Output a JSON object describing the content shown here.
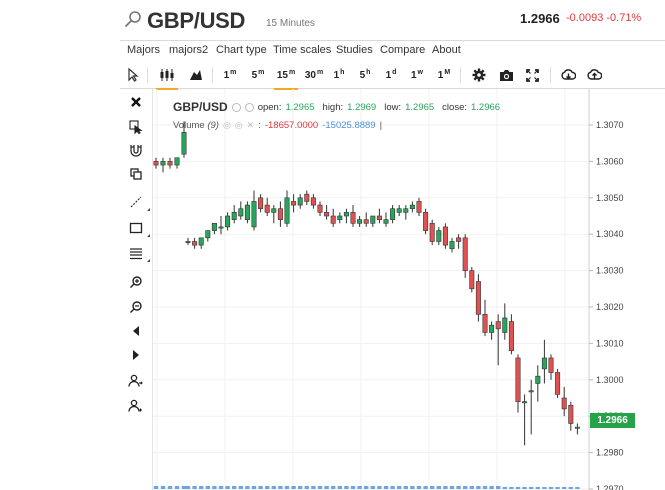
{
  "header": {
    "symbol": "GBP/USD",
    "timeframe": "15 Minutes",
    "last_price": "1.2966",
    "change": "-0.0093 -0.71%"
  },
  "menu": [
    "Majors",
    "majors2",
    "Chart type",
    "Time scales",
    "Studies",
    "Compare",
    "About"
  ],
  "toolbar": {
    "timeframes": [
      {
        "main": "1",
        "sup": "m"
      },
      {
        "main": "5",
        "sup": "m"
      },
      {
        "main": "15",
        "sup": "m"
      },
      {
        "main": "30",
        "sup": "m"
      },
      {
        "main": "1",
        "sup": "h"
      },
      {
        "main": "5",
        "sup": "h"
      },
      {
        "main": "1",
        "sup": "d"
      },
      {
        "main": "1",
        "sup": "w"
      },
      {
        "main": "1",
        "sup": "M"
      }
    ],
    "selected_timeframe": "15m"
  },
  "left_tools": [
    "close-icon",
    "crosshair-icon",
    "magnet-icon",
    "clone-icon",
    "trendline-icon",
    "rectangle-icon",
    "fibonacci-icon",
    "zoom-in-icon",
    "zoom-out-icon",
    "scroll-left-icon",
    "scroll-right-icon",
    "user-add-icon",
    "user-anchor-icon"
  ],
  "legend": {
    "symbol": "GBP/USD",
    "open_label": "open:",
    "open": "1.2965",
    "high_label": "high:",
    "high": "1.2969",
    "low_label": "low:",
    "low": "1.2965",
    "close_label": "close:",
    "close": "1.2966",
    "volume_name": "Volume",
    "volume_param": "(9)",
    "volume_value1": "-18657.0000",
    "volume_value2": "-15025.8889",
    "volume_suffix": "|"
  },
  "price_tag": "1.2966",
  "colors": {
    "up": "#26a65b",
    "down": "#e05252",
    "accent": "#f5a623",
    "price_tag": "#25a34a",
    "negative_change": "#e0393e",
    "volume_bar": "#4a90d9"
  },
  "chart_data": {
    "type": "candlestick",
    "y_ticks": [
      "1.3070",
      "1.3060",
      "1.3050",
      "1.3040",
      "1.3030",
      "1.3020",
      "1.3010",
      "1.3000",
      "1.2990",
      "1.2980",
      "1.2970"
    ],
    "ylim": [
      1.297,
      1.3075
    ],
    "current_price": 1.2966,
    "candles": [
      [
        1.306,
        1.3061,
        1.3058,
        1.3059
      ],
      [
        1.3059,
        1.3061,
        1.3057,
        1.306
      ],
      [
        1.306,
        1.3061,
        1.3058,
        1.3059
      ],
      [
        1.3059,
        1.3061,
        1.3058,
        1.3061
      ],
      [
        1.3062,
        1.3071,
        1.3061,
        1.3068
      ],
      [
        1.3038,
        1.3039,
        1.3037,
        1.3038
      ],
      [
        1.3038,
        1.3039,
        1.3036,
        1.3037
      ],
      [
        1.3037,
        1.3039,
        1.3036,
        1.3039
      ],
      [
        1.3039,
        1.3041,
        1.3038,
        1.3041
      ],
      [
        1.3041,
        1.3043,
        1.304,
        1.3043
      ],
      [
        1.3042,
        1.3045,
        1.304,
        1.3042
      ],
      [
        1.3042,
        1.3046,
        1.3041,
        1.3045
      ],
      [
        1.3044,
        1.3048,
        1.3043,
        1.3046
      ],
      [
        1.3045,
        1.3049,
        1.3044,
        1.3047
      ],
      [
        1.3044,
        1.3049,
        1.3043,
        1.3048
      ],
      [
        1.3042,
        1.3052,
        1.3041,
        1.3049
      ],
      [
        1.305,
        1.3051,
        1.3046,
        1.3047
      ],
      [
        1.3048,
        1.305,
        1.3045,
        1.3046
      ],
      [
        1.3046,
        1.3048,
        1.3043,
        1.3047
      ],
      [
        1.3047,
        1.3049,
        1.3042,
        1.3044
      ],
      [
        1.3043,
        1.3052,
        1.3042,
        1.305
      ],
      [
        1.3049,
        1.3051,
        1.3046,
        1.3048
      ],
      [
        1.3048,
        1.3051,
        1.3047,
        1.305
      ],
      [
        1.3051,
        1.3052,
        1.3048,
        1.3049
      ],
      [
        1.305,
        1.3051,
        1.3047,
        1.3048
      ],
      [
        1.3048,
        1.3049,
        1.3045,
        1.3046
      ],
      [
        1.3046,
        1.3048,
        1.3044,
        1.3045
      ],
      [
        1.3045,
        1.3047,
        1.3042,
        1.3043
      ],
      [
        1.3044,
        1.3046,
        1.3043,
        1.3045
      ],
      [
        1.3045,
        1.3047,
        1.3043,
        1.3046
      ],
      [
        1.3046,
        1.3048,
        1.3042,
        1.3043
      ],
      [
        1.3043,
        1.3045,
        1.3042,
        1.3044
      ],
      [
        1.3044,
        1.3046,
        1.3042,
        1.3043
      ],
      [
        1.3043,
        1.3045,
        1.3042,
        1.3045
      ],
      [
        1.3045,
        1.3047,
        1.3043,
        1.3044
      ],
      [
        1.3043,
        1.3046,
        1.3042,
        1.3044
      ],
      [
        1.3044,
        1.3048,
        1.3043,
        1.3047
      ],
      [
        1.3046,
        1.3048,
        1.3045,
        1.3047
      ],
      [
        1.3046,
        1.3048,
        1.3044,
        1.3047
      ],
      [
        1.3047,
        1.3049,
        1.3046,
        1.3048
      ],
      [
        1.3049,
        1.305,
        1.3045,
        1.3046
      ],
      [
        1.3046,
        1.3047,
        1.304,
        1.3041
      ],
      [
        1.3043,
        1.3044,
        1.3037,
        1.3038
      ],
      [
        1.3038,
        1.3042,
        1.3037,
        1.3041
      ],
      [
        1.3042,
        1.3043,
        1.3036,
        1.3037
      ],
      [
        1.3036,
        1.3039,
        1.3035,
        1.3038
      ],
      [
        1.3039,
        1.304,
        1.3036,
        1.3038
      ],
      [
        1.3039,
        1.304,
        1.3028,
        1.303
      ],
      [
        1.303,
        1.3031,
        1.3024,
        1.3025
      ],
      [
        1.3027,
        1.3029,
        1.3016,
        1.3018
      ],
      [
        1.3018,
        1.3022,
        1.3012,
        1.3013
      ],
      [
        1.3013,
        1.3016,
        1.3011,
        1.3015
      ],
      [
        1.3016,
        1.3018,
        1.3004,
        1.3014
      ],
      [
        1.3013,
        1.3021,
        1.3011,
        1.3017
      ],
      [
        1.3016,
        1.3018,
        1.3007,
        1.3008
      ],
      [
        1.3006,
        1.3007,
        1.2991,
        1.2994
      ],
      [
        1.2994,
        1.2996,
        1.2982,
        1.2994
      ],
      [
        1.2997,
        1.3,
        1.2985,
        1.2997
      ],
      [
        1.2999,
        1.3004,
        1.2994,
        1.3001
      ],
      [
        1.3003,
        1.3011,
        1.2999,
        1.3006
      ],
      [
        1.3006,
        1.3007,
        1.3,
        1.3002
      ],
      [
        1.3002,
        1.3003,
        1.2995,
        1.2996
      ],
      [
        1.2995,
        1.2998,
        1.299,
        1.2992
      ],
      [
        1.2993,
        1.2994,
        1.2986,
        1.2988
      ],
      [
        1.2987,
        1.2988,
        1.2985,
        1.2987
      ]
    ],
    "volume_trend": "flat-then-slightly-down"
  }
}
